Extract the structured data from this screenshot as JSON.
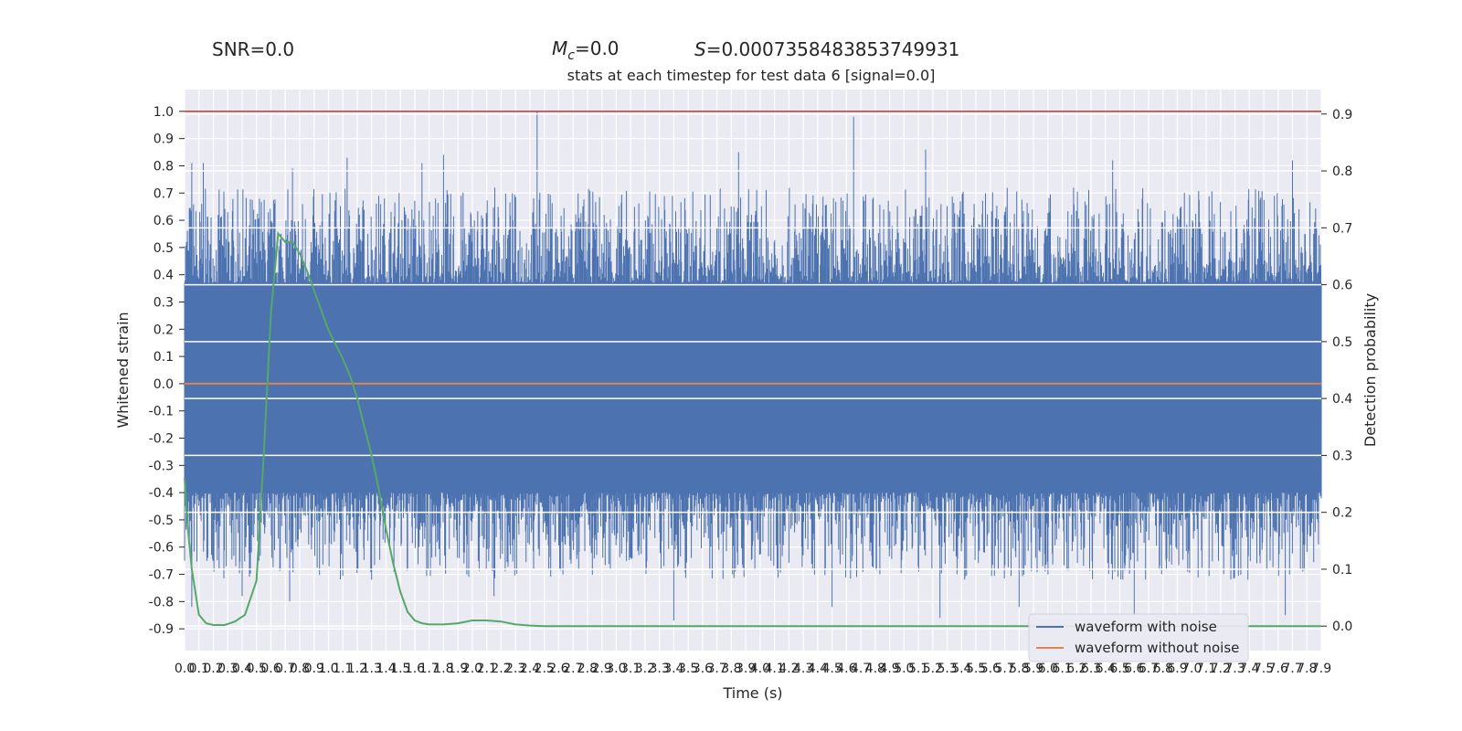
{
  "header": {
    "snr": "SNR=0.0",
    "mc_symbol": "M",
    "mc_subscript": "c",
    "mc_value": "=0.0",
    "s_symbol": "S",
    "s_value": "=0.0007358483853749931"
  },
  "chart_data": {
    "type": "line",
    "title": "stats at each timestep for test data 6 [signal=0.0]",
    "xlabel": "Time (s)",
    "ylabel_left": "Whitened strain",
    "ylabel_right": "Detection probability",
    "xlim": [
      0.0,
      7.9
    ],
    "ylim_left": [
      -0.98,
      1.08
    ],
    "ylim_right": [
      -0.043,
      0.943
    ],
    "x_ticks": [
      "0.0",
      "0.1",
      "0.2",
      "0.3",
      "0.4",
      "0.5",
      "0.6",
      "0.7",
      "0.8",
      "0.9",
      "1.0",
      "1.1",
      "1.2",
      "1.3",
      "1.4",
      "1.5",
      "1.6",
      "1.7",
      "1.8",
      "1.9",
      "2.0",
      "2.1",
      "2.2",
      "2.3",
      "2.4",
      "2.5",
      "2.6",
      "2.7",
      "2.8",
      "2.9",
      "3.0",
      "3.1",
      "3.2",
      "3.3",
      "3.4",
      "3.5",
      "3.6",
      "3.7",
      "3.8",
      "3.9",
      "4.0",
      "4.1",
      "4.2",
      "4.3",
      "4.4",
      "4.5",
      "4.6",
      "4.7",
      "4.8",
      "4.9",
      "5.0",
      "5.1",
      "5.2",
      "5.3",
      "5.4",
      "5.5",
      "5.6",
      "5.7",
      "5.8",
      "5.9",
      "6.0",
      "6.1",
      "6.2",
      "6.3",
      "6.4",
      "6.5",
      "6.6",
      "6.7",
      "6.8",
      "6.9",
      "7.0",
      "7.1",
      "7.2",
      "7.3",
      "7.4",
      "7.5",
      "7.6",
      "7.7",
      "7.8",
      "7.9"
    ],
    "y_ticks_left": [
      "1.0",
      "0.9",
      "0.8",
      "0.7",
      "0.6",
      "0.5",
      "0.4",
      "0.3",
      "0.2",
      "0.1",
      "0.0",
      "-0.1",
      "-0.2",
      "-0.3",
      "-0.4",
      "-0.5",
      "-0.6",
      "-0.7",
      "-0.8",
      "-0.9"
    ],
    "y_ticks_right": [
      "0.9",
      "0.8",
      "0.7",
      "0.6",
      "0.5",
      "0.4",
      "0.3",
      "0.2",
      "0.1",
      "0.0"
    ],
    "threshold_line": {
      "value": 1.0,
      "axis": "left",
      "color": "#c44e52"
    },
    "series": [
      {
        "name": "waveform with noise",
        "color": "#4c72b0",
        "axis": "left",
        "envelope": {
          "band_upper": 0.37,
          "band_lower": -0.4,
          "spikes_up": [
            [
              0.05,
              0.81
            ],
            [
              0.13,
              0.81
            ],
            [
              0.3,
              0.63
            ],
            [
              0.52,
              0.68
            ],
            [
              0.75,
              0.79
            ],
            [
              1.13,
              0.83
            ],
            [
              1.65,
              0.81
            ],
            [
              1.8,
              0.84
            ],
            [
              2.45,
              1.0
            ],
            [
              3.85,
              0.85
            ],
            [
              4.65,
              0.98
            ],
            [
              5.15,
              0.86
            ],
            [
              6.45,
              0.82
            ],
            [
              7.7,
              0.82
            ]
          ],
          "spikes_down": [
            [
              0.05,
              -0.82
            ],
            [
              0.4,
              -0.78
            ],
            [
              0.73,
              -0.8
            ],
            [
              1.3,
              -0.72
            ],
            [
              2.15,
              -0.78
            ],
            [
              3.4,
              -0.87
            ],
            [
              4.5,
              -0.82
            ],
            [
              5.25,
              -0.86
            ],
            [
              5.8,
              -0.82
            ],
            [
              6.6,
              -0.85
            ],
            [
              7.65,
              -0.85
            ]
          ]
        }
      },
      {
        "name": "waveform without noise",
        "color": "#dd8452",
        "axis": "left",
        "constant": 0.0
      },
      {
        "name": "",
        "color": "#55a868",
        "axis": "right",
        "x": [
          0.0,
          0.02,
          0.05,
          0.1,
          0.15,
          0.2,
          0.28,
          0.35,
          0.42,
          0.5,
          0.55,
          0.6,
          0.65,
          0.7,
          0.75,
          0.8,
          0.85,
          0.9,
          0.95,
          1.0,
          1.05,
          1.1,
          1.15,
          1.2,
          1.25,
          1.3,
          1.35,
          1.4,
          1.45,
          1.5,
          1.55,
          1.6,
          1.65,
          1.7,
          1.75,
          1.8,
          1.9,
          2.0,
          2.1,
          2.2,
          2.3,
          2.4,
          2.5,
          2.6,
          2.8,
          3.0,
          4.0,
          5.0,
          6.0,
          7.0,
          7.9
        ],
        "y": [
          0.26,
          0.18,
          0.1,
          0.02,
          0.005,
          0.002,
          0.002,
          0.008,
          0.02,
          0.08,
          0.3,
          0.55,
          0.69,
          0.675,
          0.675,
          0.655,
          0.625,
          0.59,
          0.555,
          0.52,
          0.495,
          0.47,
          0.44,
          0.4,
          0.35,
          0.3,
          0.24,
          0.17,
          0.11,
          0.06,
          0.025,
          0.01,
          0.005,
          0.003,
          0.003,
          0.003,
          0.005,
          0.01,
          0.01,
          0.008,
          0.003,
          0.001,
          0.0,
          0.0,
          0.0,
          0.0,
          0.0,
          0.0,
          0.0,
          0.0,
          0.0
        ]
      }
    ],
    "legend": {
      "placement": "lower-right",
      "entries": [
        "waveform with noise",
        "waveform without noise"
      ]
    },
    "grid": true
  }
}
